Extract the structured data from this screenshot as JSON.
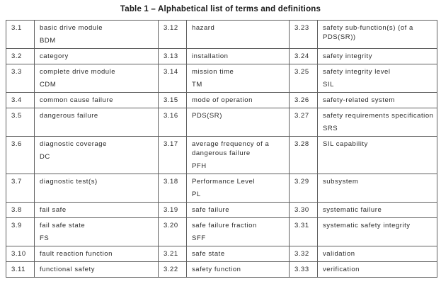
{
  "title": "Table 1 – Alphabetical list of terms and definitions",
  "table": {
    "rows": [
      {
        "cells": [
          {
            "num": "3.1",
            "term": "basic drive module",
            "abbr": "BDM"
          },
          {
            "num": "3.12",
            "term": "hazard",
            "abbr": ""
          },
          {
            "num": "3.23",
            "term": "safety sub-function(s) (of a PDS(SR))",
            "abbr": ""
          }
        ]
      },
      {
        "cells": [
          {
            "num": "3.2",
            "term": "category",
            "abbr": ""
          },
          {
            "num": "3.13",
            "term": "installation",
            "abbr": ""
          },
          {
            "num": "3.24",
            "term": "safety integrity",
            "abbr": ""
          }
        ]
      },
      {
        "cells": [
          {
            "num": "3.3",
            "term": "complete drive module",
            "abbr": "CDM"
          },
          {
            "num": "3.14",
            "term": "mission time",
            "abbr": "TM"
          },
          {
            "num": "3.25",
            "term": "safety integrity level",
            "abbr": "SIL"
          }
        ]
      },
      {
        "cells": [
          {
            "num": "3.4",
            "term": "common cause failure",
            "abbr": ""
          },
          {
            "num": "3.15",
            "term": "mode of operation",
            "abbr": ""
          },
          {
            "num": "3.26",
            "term": "safety-related system",
            "abbr": ""
          }
        ]
      },
      {
        "cells": [
          {
            "num": "3.5",
            "term": "dangerous failure",
            "abbr": ""
          },
          {
            "num": "3.16",
            "term": "PDS(SR)",
            "abbr": ""
          },
          {
            "num": "3.27",
            "term": "safety requirements specification",
            "abbr": "SRS"
          }
        ]
      },
      {
        "cells": [
          {
            "num": "3.6",
            "term": "diagnostic coverage",
            "abbr": "DC"
          },
          {
            "num": "3.17",
            "term": "average frequency of a dangerous failure",
            "abbr": "PFH"
          },
          {
            "num": "3.28",
            "term": "SIL capability",
            "abbr": ""
          }
        ]
      },
      {
        "cells": [
          {
            "num": "3.7",
            "term": "diagnostic test(s)",
            "abbr": ""
          },
          {
            "num": "3.18",
            "term": "Performance Level",
            "abbr": "PL"
          },
          {
            "num": "3.29",
            "term": "subsystem",
            "abbr": ""
          }
        ]
      },
      {
        "cells": [
          {
            "num": "3.8",
            "term": "fail safe",
            "abbr": ""
          },
          {
            "num": "3.19",
            "term": "safe failure",
            "abbr": ""
          },
          {
            "num": "3.30",
            "term": "systematic failure",
            "abbr": ""
          }
        ]
      },
      {
        "cells": [
          {
            "num": "3.9",
            "term": "fail safe state",
            "abbr": "FS"
          },
          {
            "num": "3.20",
            "term": "safe failure fraction",
            "abbr": "SFF"
          },
          {
            "num": "3.31",
            "term": "systematic safety integrity",
            "abbr": ""
          }
        ]
      },
      {
        "cells": [
          {
            "num": "3.10",
            "term": "fault reaction function",
            "abbr": ""
          },
          {
            "num": "3.21",
            "term": "safe state",
            "abbr": ""
          },
          {
            "num": "3.32",
            "term": "validation",
            "abbr": ""
          }
        ]
      },
      {
        "cells": [
          {
            "num": "3.11",
            "term": "functional safety",
            "abbr": ""
          },
          {
            "num": "3.22",
            "term": "safety function",
            "abbr": ""
          },
          {
            "num": "3.33",
            "term": "verification",
            "abbr": ""
          }
        ]
      }
    ]
  }
}
